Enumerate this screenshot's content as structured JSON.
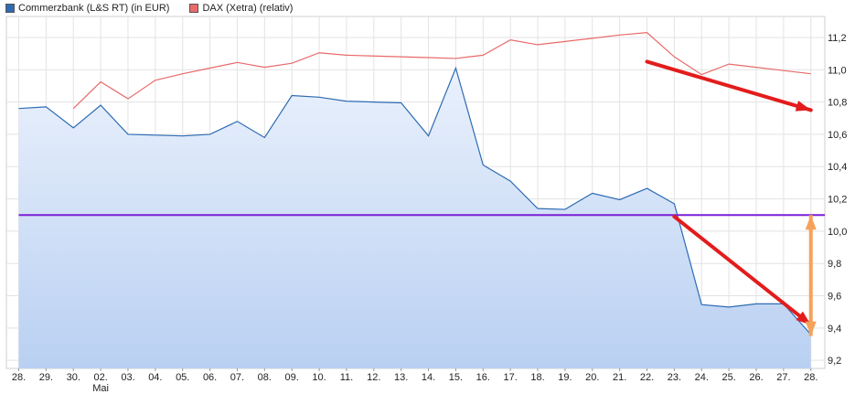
{
  "chart_data": {
    "type": "line",
    "legend_placement": "top-left",
    "grid": true,
    "categories": [
      "28.",
      "29.",
      "30.",
      "02.",
      "03.",
      "04.",
      "05.",
      "06.",
      "07.",
      "08.",
      "09.",
      "10.",
      "11.",
      "12.",
      "13.",
      "14.",
      "15.",
      "16.",
      "17.",
      "18.",
      "19.",
      "20.",
      "21.",
      "22.",
      "23.",
      "24.",
      "25.",
      "26.",
      "27.",
      "28."
    ],
    "month_label": {
      "category_index": 3,
      "text": "Mai"
    },
    "ylim": [
      9.15,
      11.33
    ],
    "yticks": [
      9.2,
      9.4,
      9.6,
      9.8,
      10.0,
      10.2,
      10.4,
      10.6,
      10.8,
      11.0,
      11.2
    ],
    "ytick_labels": [
      "9,2",
      "9,4",
      "9,6",
      "9,8",
      "10,0",
      "10,2",
      "10,4",
      "10,6",
      "10,8",
      "11,0",
      "11,2"
    ],
    "series": [
      {
        "name": "Commerzbank (L&S RT) (in EUR)",
        "color": "#2e6bb3",
        "fill_top": "#eaf1fc",
        "fill_bottom": "#b9d0f2",
        "x": [
          0,
          1,
          2,
          3,
          4,
          5,
          6,
          7,
          8,
          9,
          10,
          11,
          12,
          13,
          14,
          15,
          16,
          17,
          18,
          19,
          20,
          21,
          22,
          23,
          24,
          25,
          26,
          27,
          28,
          29
        ],
        "values": [
          10.76,
          10.77,
          10.64,
          10.78,
          10.6,
          10.595,
          10.59,
          10.6,
          10.68,
          10.58,
          10.84,
          10.83,
          10.805,
          10.8,
          10.795,
          10.59,
          11.01,
          10.41,
          10.31,
          10.14,
          10.135,
          10.235,
          10.195,
          10.265,
          10.17,
          9.545,
          9.53,
          9.55,
          9.55,
          9.36
        ]
      },
      {
        "name": "DAX (Xetra) (relativ)",
        "color": "#e86a6a",
        "x": [
          2,
          3,
          4,
          5,
          6,
          7,
          8,
          9,
          10,
          11,
          12,
          13,
          14,
          15,
          16,
          17,
          18,
          19,
          20,
          21,
          22,
          23,
          24,
          25,
          26,
          27,
          28,
          29
        ],
        "values": [
          10.76,
          10.925,
          10.82,
          10.935,
          10.975,
          11.01,
          11.045,
          11.015,
          11.04,
          11.105,
          11.09,
          11.085,
          11.08,
          11.075,
          11.07,
          11.09,
          11.185,
          11.155,
          11.175,
          11.195,
          11.215,
          11.23,
          11.08,
          10.97,
          11.035,
          11.015,
          10.995,
          10.975
        ]
      }
    ],
    "reference_line": {
      "value": 10.1,
      "color": "#7b1fd6"
    },
    "annotations": [
      {
        "type": "arrow",
        "color": "#e31c1c",
        "from": {
          "x": 23,
          "y": 11.05
        },
        "to": {
          "x": 29,
          "y": 10.75
        }
      },
      {
        "type": "arrow",
        "color": "#e31c1c",
        "from": {
          "x": 24,
          "y": 10.09
        },
        "to": {
          "x": 29,
          "y": 9.42
        }
      },
      {
        "type": "double-arrow",
        "color": "#f5a25a",
        "from": {
          "x": 29,
          "y": 10.1
        },
        "to": {
          "x": 29,
          "y": 9.35
        }
      }
    ]
  }
}
